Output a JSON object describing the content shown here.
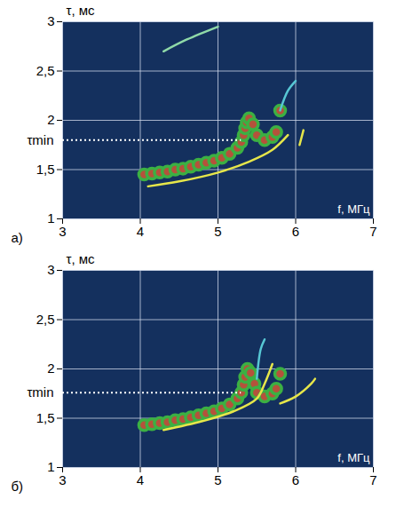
{
  "chart_data": [
    {
      "type": "scatter",
      "title": "а)",
      "x_label": "f, МГц",
      "y_label": "τ, мс",
      "xlim": [
        3,
        7
      ],
      "xticks": [
        3,
        4,
        5,
        6,
        7
      ],
      "ylim": [
        1,
        3
      ],
      "yticks": [
        1,
        {
          "value": 1.5,
          "label": "1,5"
        },
        2,
        {
          "value": 2.5,
          "label": "2,5"
        },
        3
      ],
      "grid": true,
      "tau_min": {
        "label": "τmin",
        "value": 1.8,
        "x": [
          3,
          5.3
        ]
      },
      "series": [
        {
          "type": "scatter",
          "marker": "circle",
          "color": "#3cb043",
          "x": [
            4.05,
            4.15,
            4.25,
            4.35,
            4.45,
            4.55,
            4.65,
            4.75,
            4.85,
            4.95,
            5.05,
            5.15,
            5.25,
            5.3,
            5.33,
            5.35,
            5.37,
            5.4,
            5.45,
            5.5,
            5.6,
            5.7,
            5.75,
            5.8
          ],
          "values": [
            1.45,
            1.46,
            1.47,
            1.48,
            1.5,
            1.51,
            1.53,
            1.55,
            1.57,
            1.59,
            1.62,
            1.66,
            1.72,
            1.78,
            1.85,
            1.92,
            1.98,
            2.02,
            1.96,
            1.85,
            1.8,
            1.83,
            1.88,
            2.1
          ]
        },
        {
          "type": "line",
          "color": "#e6e64a",
          "x": [
            4.1,
            4.5,
            5.0,
            5.4,
            5.7,
            5.9
          ],
          "values": [
            1.33,
            1.38,
            1.47,
            1.58,
            1.7,
            1.85
          ]
        },
        {
          "type": "line",
          "color": "#8fd9a8",
          "x": [
            4.3,
            4.6,
            5.0
          ],
          "values": [
            2.7,
            2.82,
            2.95
          ]
        },
        {
          "type": "line",
          "color": "#57c7d4",
          "x": [
            5.8,
            5.9,
            6.0
          ],
          "values": [
            2.1,
            2.3,
            2.4
          ]
        },
        {
          "type": "line",
          "color": "#e6e64a",
          "x": [
            6.05,
            6.1
          ],
          "values": [
            1.75,
            1.9
          ]
        }
      ]
    },
    {
      "type": "scatter",
      "title": "б)",
      "x_label": "f, МГц",
      "y_label": "τ, мс",
      "xlim": [
        3,
        7
      ],
      "xticks": [
        3,
        4,
        5,
        6,
        7
      ],
      "ylim": [
        1,
        3
      ],
      "yticks": [
        1,
        {
          "value": 1.5,
          "label": "1,5"
        },
        2,
        {
          "value": 2.5,
          "label": "2,5"
        },
        3
      ],
      "grid": true,
      "tau_min": {
        "label": "τmin",
        "value": 1.76,
        "x": [
          3,
          5.3
        ]
      },
      "series": [
        {
          "type": "scatter",
          "marker": "circle",
          "color": "#3cb043",
          "x": [
            4.05,
            4.15,
            4.25,
            4.35,
            4.45,
            4.55,
            4.65,
            4.75,
            4.85,
            4.95,
            5.05,
            5.15,
            5.25,
            5.3,
            5.33,
            5.35,
            5.38,
            5.42,
            5.47,
            5.5,
            5.6,
            5.7,
            5.75,
            5.8
          ],
          "values": [
            1.43,
            1.44,
            1.45,
            1.46,
            1.48,
            1.49,
            1.51,
            1.53,
            1.55,
            1.57,
            1.6,
            1.64,
            1.7,
            1.76,
            1.84,
            1.92,
            2.0,
            1.96,
            1.85,
            1.76,
            1.72,
            1.75,
            1.8,
            1.95
          ]
        },
        {
          "type": "line",
          "color": "#e6e64a",
          "x": [
            4.3,
            4.8,
            5.2,
            5.5,
            5.6,
            5.7
          ],
          "values": [
            1.38,
            1.47,
            1.57,
            1.7,
            1.85,
            2.05
          ]
        },
        {
          "type": "line",
          "color": "#e6e64a",
          "x": [
            5.8,
            6.0,
            6.2,
            6.25
          ],
          "values": [
            1.65,
            1.72,
            1.85,
            1.9
          ]
        },
        {
          "type": "line",
          "color": "#57c7d4",
          "x": [
            5.5,
            5.55,
            5.6
          ],
          "values": [
            1.9,
            2.2,
            2.3
          ]
        }
      ]
    }
  ]
}
